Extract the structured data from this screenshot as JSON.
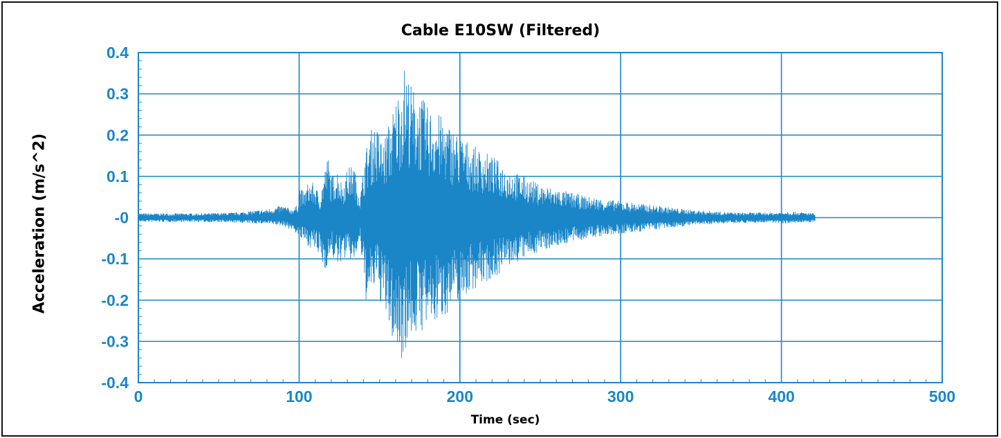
{
  "chart_data": {
    "type": "line",
    "title": "Cable E10SW (Filtered)",
    "xlabel": "Time (sec)",
    "ylabel": "Acceleration (m/s^2)",
    "xlim": [
      0,
      500
    ],
    "ylim": [
      -0.4,
      0.4
    ],
    "x_ticks": [
      0,
      100,
      200,
      300,
      400,
      500
    ],
    "x_tick_labels": [
      "0",
      "100",
      "200",
      "300",
      "400",
      "500"
    ],
    "y_ticks": [
      0.4,
      0.3,
      0.2,
      0.1,
      0,
      -0.1,
      -0.2,
      -0.3,
      -0.4
    ],
    "y_tick_labels": [
      "0.4",
      "0.3",
      "0.2",
      "0.1",
      "-0",
      "-0.1",
      "-0.2",
      "-0.3",
      "-0.4"
    ],
    "grid": true,
    "line_color": "#1a86c8",
    "signal_end_time": 421,
    "envelope": {
      "x": [
        0,
        20,
        40,
        60,
        80,
        90,
        95,
        99,
        100,
        103,
        106,
        110,
        113,
        116,
        118,
        120,
        124,
        127,
        130,
        134,
        138,
        141,
        144,
        146,
        148,
        150,
        152,
        155,
        158,
        161,
        163,
        165,
        167,
        170,
        175,
        180,
        185,
        190,
        195,
        200,
        210,
        220,
        230,
        240,
        250,
        260,
        270,
        280,
        290,
        300,
        310,
        320,
        330,
        340,
        350,
        360,
        370,
        380,
        390,
        398,
        402,
        408,
        415,
        421
      ],
      "upper": [
        0.01,
        0.01,
        0.01,
        0.012,
        0.02,
        0.03,
        0.02,
        0.03,
        0.08,
        0.06,
        0.09,
        0.08,
        0.05,
        0.12,
        0.15,
        0.1,
        0.12,
        0.08,
        0.12,
        0.13,
        0.05,
        0.16,
        0.2,
        0.23,
        0.22,
        0.21,
        0.18,
        0.22,
        0.26,
        0.3,
        0.33,
        0.37,
        0.36,
        0.32,
        0.3,
        0.27,
        0.26,
        0.24,
        0.22,
        0.2,
        0.17,
        0.15,
        0.12,
        0.1,
        0.08,
        0.07,
        0.06,
        0.05,
        0.045,
        0.04,
        0.035,
        0.03,
        0.025,
        0.02,
        0.017,
        0.015,
        0.012,
        0.012,
        0.012,
        0.012,
        0.015,
        0.014,
        0.012,
        0.01
      ],
      "lower": [
        -0.01,
        -0.01,
        -0.01,
        -0.012,
        -0.015,
        -0.02,
        -0.03,
        -0.04,
        -0.05,
        -0.06,
        -0.07,
        -0.08,
        -0.1,
        -0.13,
        -0.11,
        -0.09,
        -0.12,
        -0.1,
        -0.1,
        -0.11,
        -0.06,
        -0.2,
        -0.21,
        -0.18,
        -0.16,
        -0.2,
        -0.22,
        -0.26,
        -0.3,
        -0.33,
        -0.35,
        -0.33,
        -0.31,
        -0.29,
        -0.28,
        -0.27,
        -0.26,
        -0.24,
        -0.22,
        -0.2,
        -0.17,
        -0.15,
        -0.12,
        -0.1,
        -0.08,
        -0.07,
        -0.06,
        -0.05,
        -0.045,
        -0.04,
        -0.035,
        -0.03,
        -0.025,
        -0.02,
        -0.017,
        -0.015,
        -0.012,
        -0.012,
        -0.012,
        -0.012,
        -0.014,
        -0.013,
        -0.012,
        -0.01
      ]
    }
  }
}
